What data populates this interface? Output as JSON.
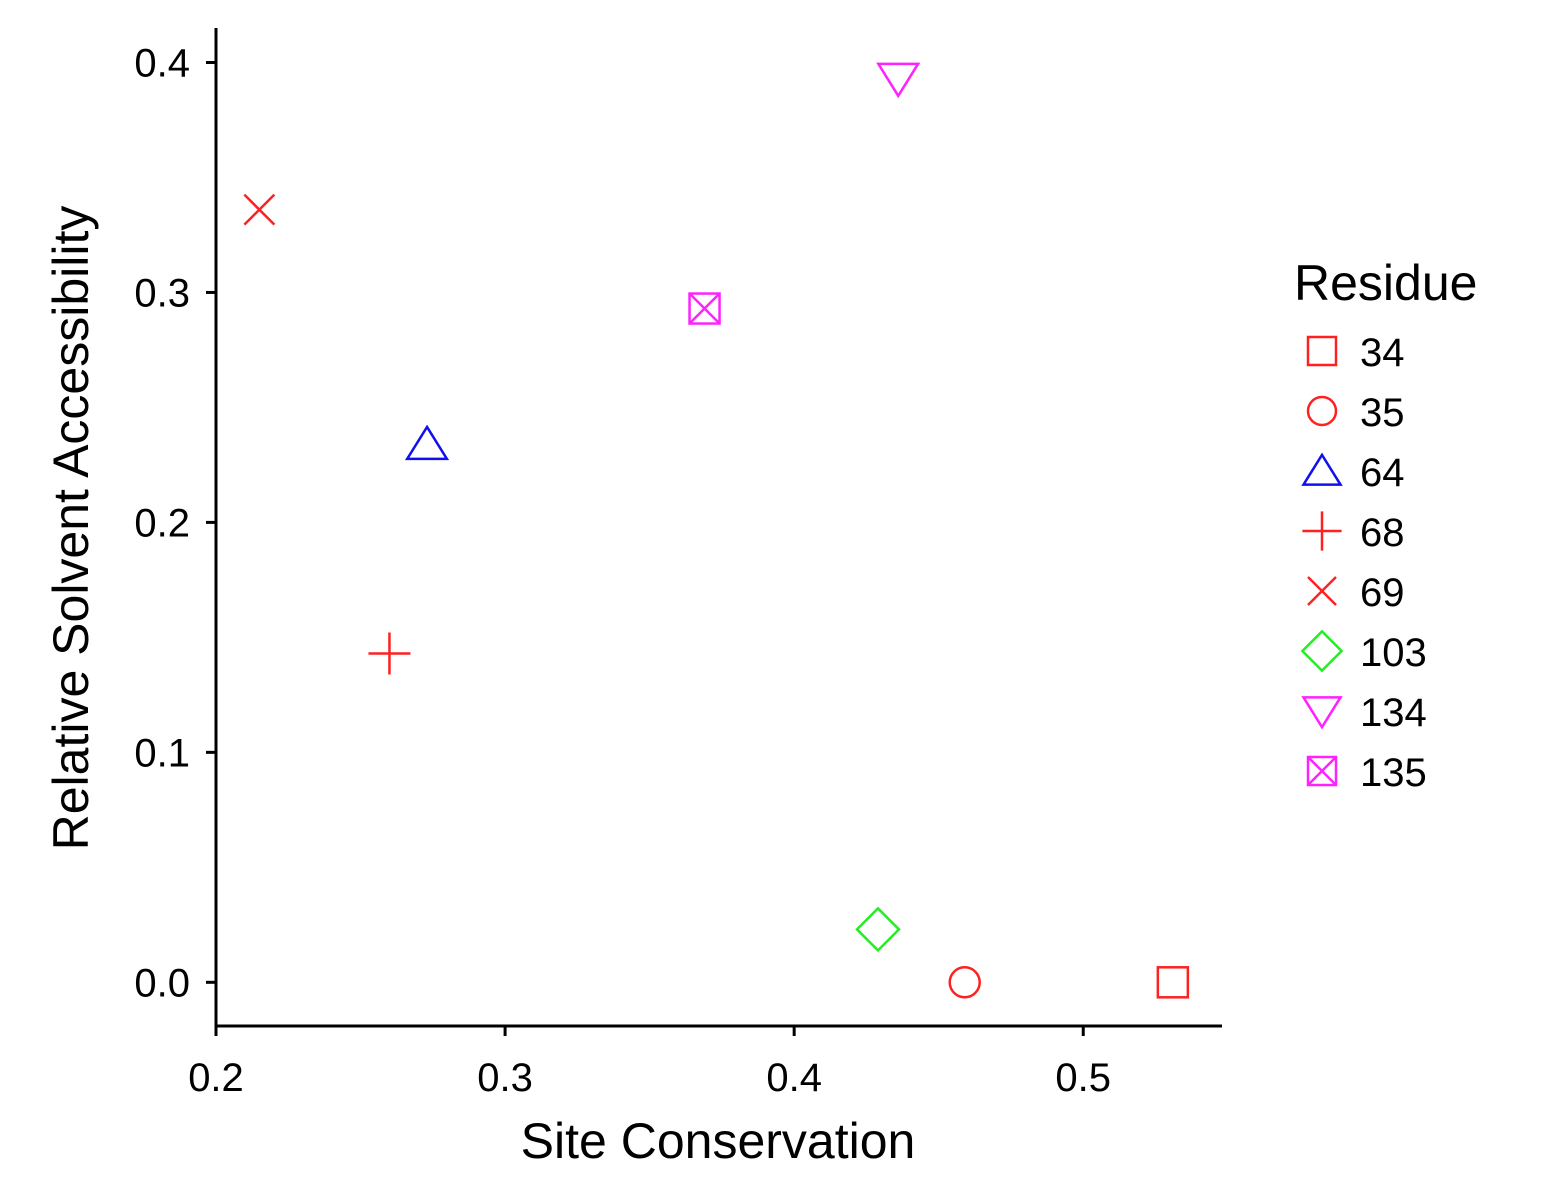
{
  "chart_data": {
    "type": "scatter",
    "xlabel": "Site Conservation",
    "ylabel": "Relative Solvent Accessibility",
    "xlim": [
      0.2,
      0.548
    ],
    "ylim": [
      -0.019,
      0.415
    ],
    "xticks": [
      0.2,
      0.3,
      0.4,
      0.5
    ],
    "xtick_labels": [
      "0.2",
      "0.3",
      "0.4",
      "0.5"
    ],
    "yticks": [
      0.0,
      0.1,
      0.2,
      0.3,
      0.4
    ],
    "ytick_labels": [
      "0.0",
      "0.1",
      "0.2",
      "0.3",
      "0.4"
    ],
    "grid": false,
    "legend": {
      "title": "Residue",
      "position": "right"
    },
    "series": [
      {
        "name": "34",
        "shape": "square",
        "color": "#ff2020",
        "x": 0.531,
        "y": 0.0
      },
      {
        "name": "35",
        "shape": "circle",
        "color": "#ff2020",
        "x": 0.459,
        "y": 0.0
      },
      {
        "name": "64",
        "shape": "triangle-up",
        "color": "#1010ee",
        "x": 0.273,
        "y": 0.234
      },
      {
        "name": "68",
        "shape": "plus",
        "color": "#ff2020",
        "x": 0.26,
        "y": 0.143
      },
      {
        "name": "69",
        "shape": "cross",
        "color": "#ff2020",
        "x": 0.215,
        "y": 0.336
      },
      {
        "name": "103",
        "shape": "diamond",
        "color": "#22ee22",
        "x": 0.429,
        "y": 0.023
      },
      {
        "name": "134",
        "shape": "triangle-down",
        "color": "#ff22ff",
        "x": 0.436,
        "y": 0.393
      },
      {
        "name": "135",
        "shape": "square-cross",
        "color": "#ff22ff",
        "x": 0.369,
        "y": 0.293
      }
    ]
  }
}
